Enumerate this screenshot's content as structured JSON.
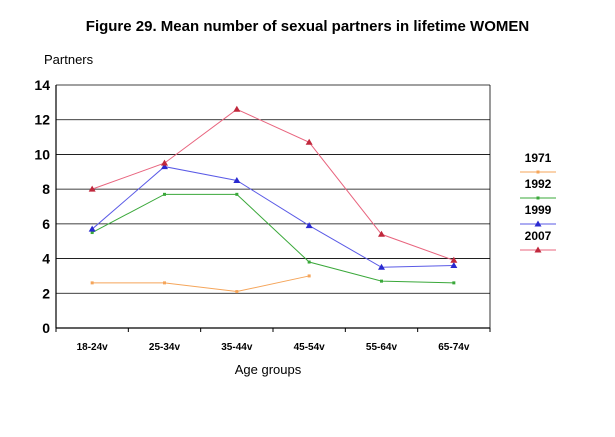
{
  "chart_data": {
    "type": "line",
    "title": "Figure 29. Mean number of sexual partners in lifetime WOMEN",
    "ylabel": "Partners",
    "xlabel": "Age groups",
    "categories": [
      "18-24v",
      "25-34v",
      "35-44v",
      "45-54v",
      "55-64v",
      "65-74v"
    ],
    "ylim": [
      0,
      14
    ],
    "yticks": [
      0,
      2,
      4,
      6,
      8,
      10,
      12,
      14
    ],
    "grid": true,
    "legend": "right",
    "series": [
      {
        "name": "1971",
        "color": "#f5a55a",
        "marker": "dot",
        "values": [
          2.6,
          2.6,
          2.1,
          3.0,
          null,
          null
        ]
      },
      {
        "name": "1992",
        "color": "#3aa83a",
        "marker": "dot",
        "values": [
          5.5,
          7.7,
          7.7,
          3.8,
          2.7,
          2.6
        ]
      },
      {
        "name": "1999",
        "color": "#5a5ae6",
        "marker": "triangle",
        "values": [
          5.7,
          9.3,
          8.5,
          5.9,
          3.5,
          3.6
        ]
      },
      {
        "name": "2007",
        "color": "#e8647e",
        "marker": "triangle",
        "values": [
          8.0,
          9.5,
          12.6,
          10.7,
          5.4,
          3.9
        ]
      }
    ]
  }
}
